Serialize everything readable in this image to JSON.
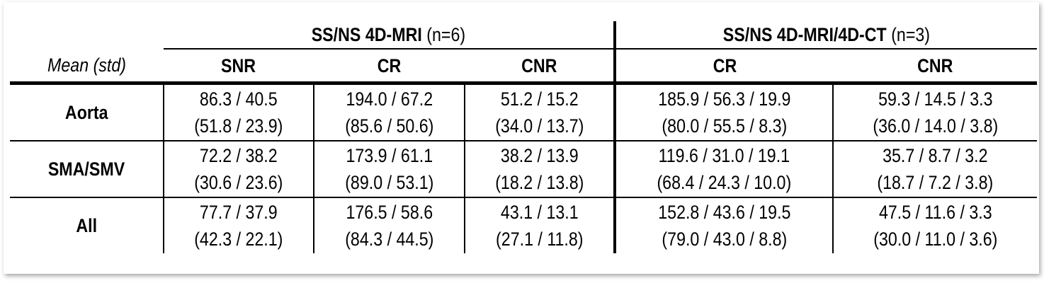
{
  "table": {
    "corner_label": "Mean (std)",
    "groups": [
      {
        "title": "SS/NS 4D-MRI",
        "n": "(n=6)",
        "columns": [
          "SNR",
          "CR",
          "CNR"
        ]
      },
      {
        "title": "SS/NS 4D-MRI/4D-CT",
        "n": "(n=3)",
        "columns": [
          "CR",
          "CNR"
        ]
      }
    ],
    "rows": [
      {
        "label": "Aorta",
        "cells": [
          {
            "mean": "86.3 / 40.5",
            "std": "(51.8 / 23.9)"
          },
          {
            "mean": "194.0 / 67.2",
            "std": "(85.6 / 50.6)"
          },
          {
            "mean": "51.2 / 15.2",
            "std": "(34.0 / 13.7)"
          },
          {
            "mean": "185.9 / 56.3 / 19.9",
            "std": "(80.0 / 55.5 / 8.3)"
          },
          {
            "mean": "59.3 / 14.5 / 3.3",
            "std": "(36.0 / 14.0 / 3.8)"
          }
        ]
      },
      {
        "label": "SMA/SMV",
        "cells": [
          {
            "mean": "72.2 / 38.2",
            "std": "(30.6 / 23.6)"
          },
          {
            "mean": "173.9 / 61.1",
            "std": "(89.0 / 53.1)"
          },
          {
            "mean": "38.2 / 13.9",
            "std": "(18.2 / 13.8)"
          },
          {
            "mean": "119.6 / 31.0 / 19.1",
            "std": "(68.4 / 24.3 / 10.0)"
          },
          {
            "mean": "35.7 / 8.7 / 3.2",
            "std": "(18.7 / 7.2 / 3.8)"
          }
        ]
      },
      {
        "label": "All",
        "cells": [
          {
            "mean": "77.7 / 37.9",
            "std": "(42.3 / 22.1)"
          },
          {
            "mean": "176.5 / 58.6",
            "std": "(84.3 / 44.5)"
          },
          {
            "mean": "43.1 / 13.1",
            "std": "(27.1 / 11.8)"
          },
          {
            "mean": "152.8 / 43.6 / 19.5",
            "std": "(79.0 / 43.0 / 8.8)"
          },
          {
            "mean": "47.5 / 11.6 / 3.3",
            "std": "(30.0 / 11.0 / 3.6)"
          }
        ]
      }
    ]
  }
}
